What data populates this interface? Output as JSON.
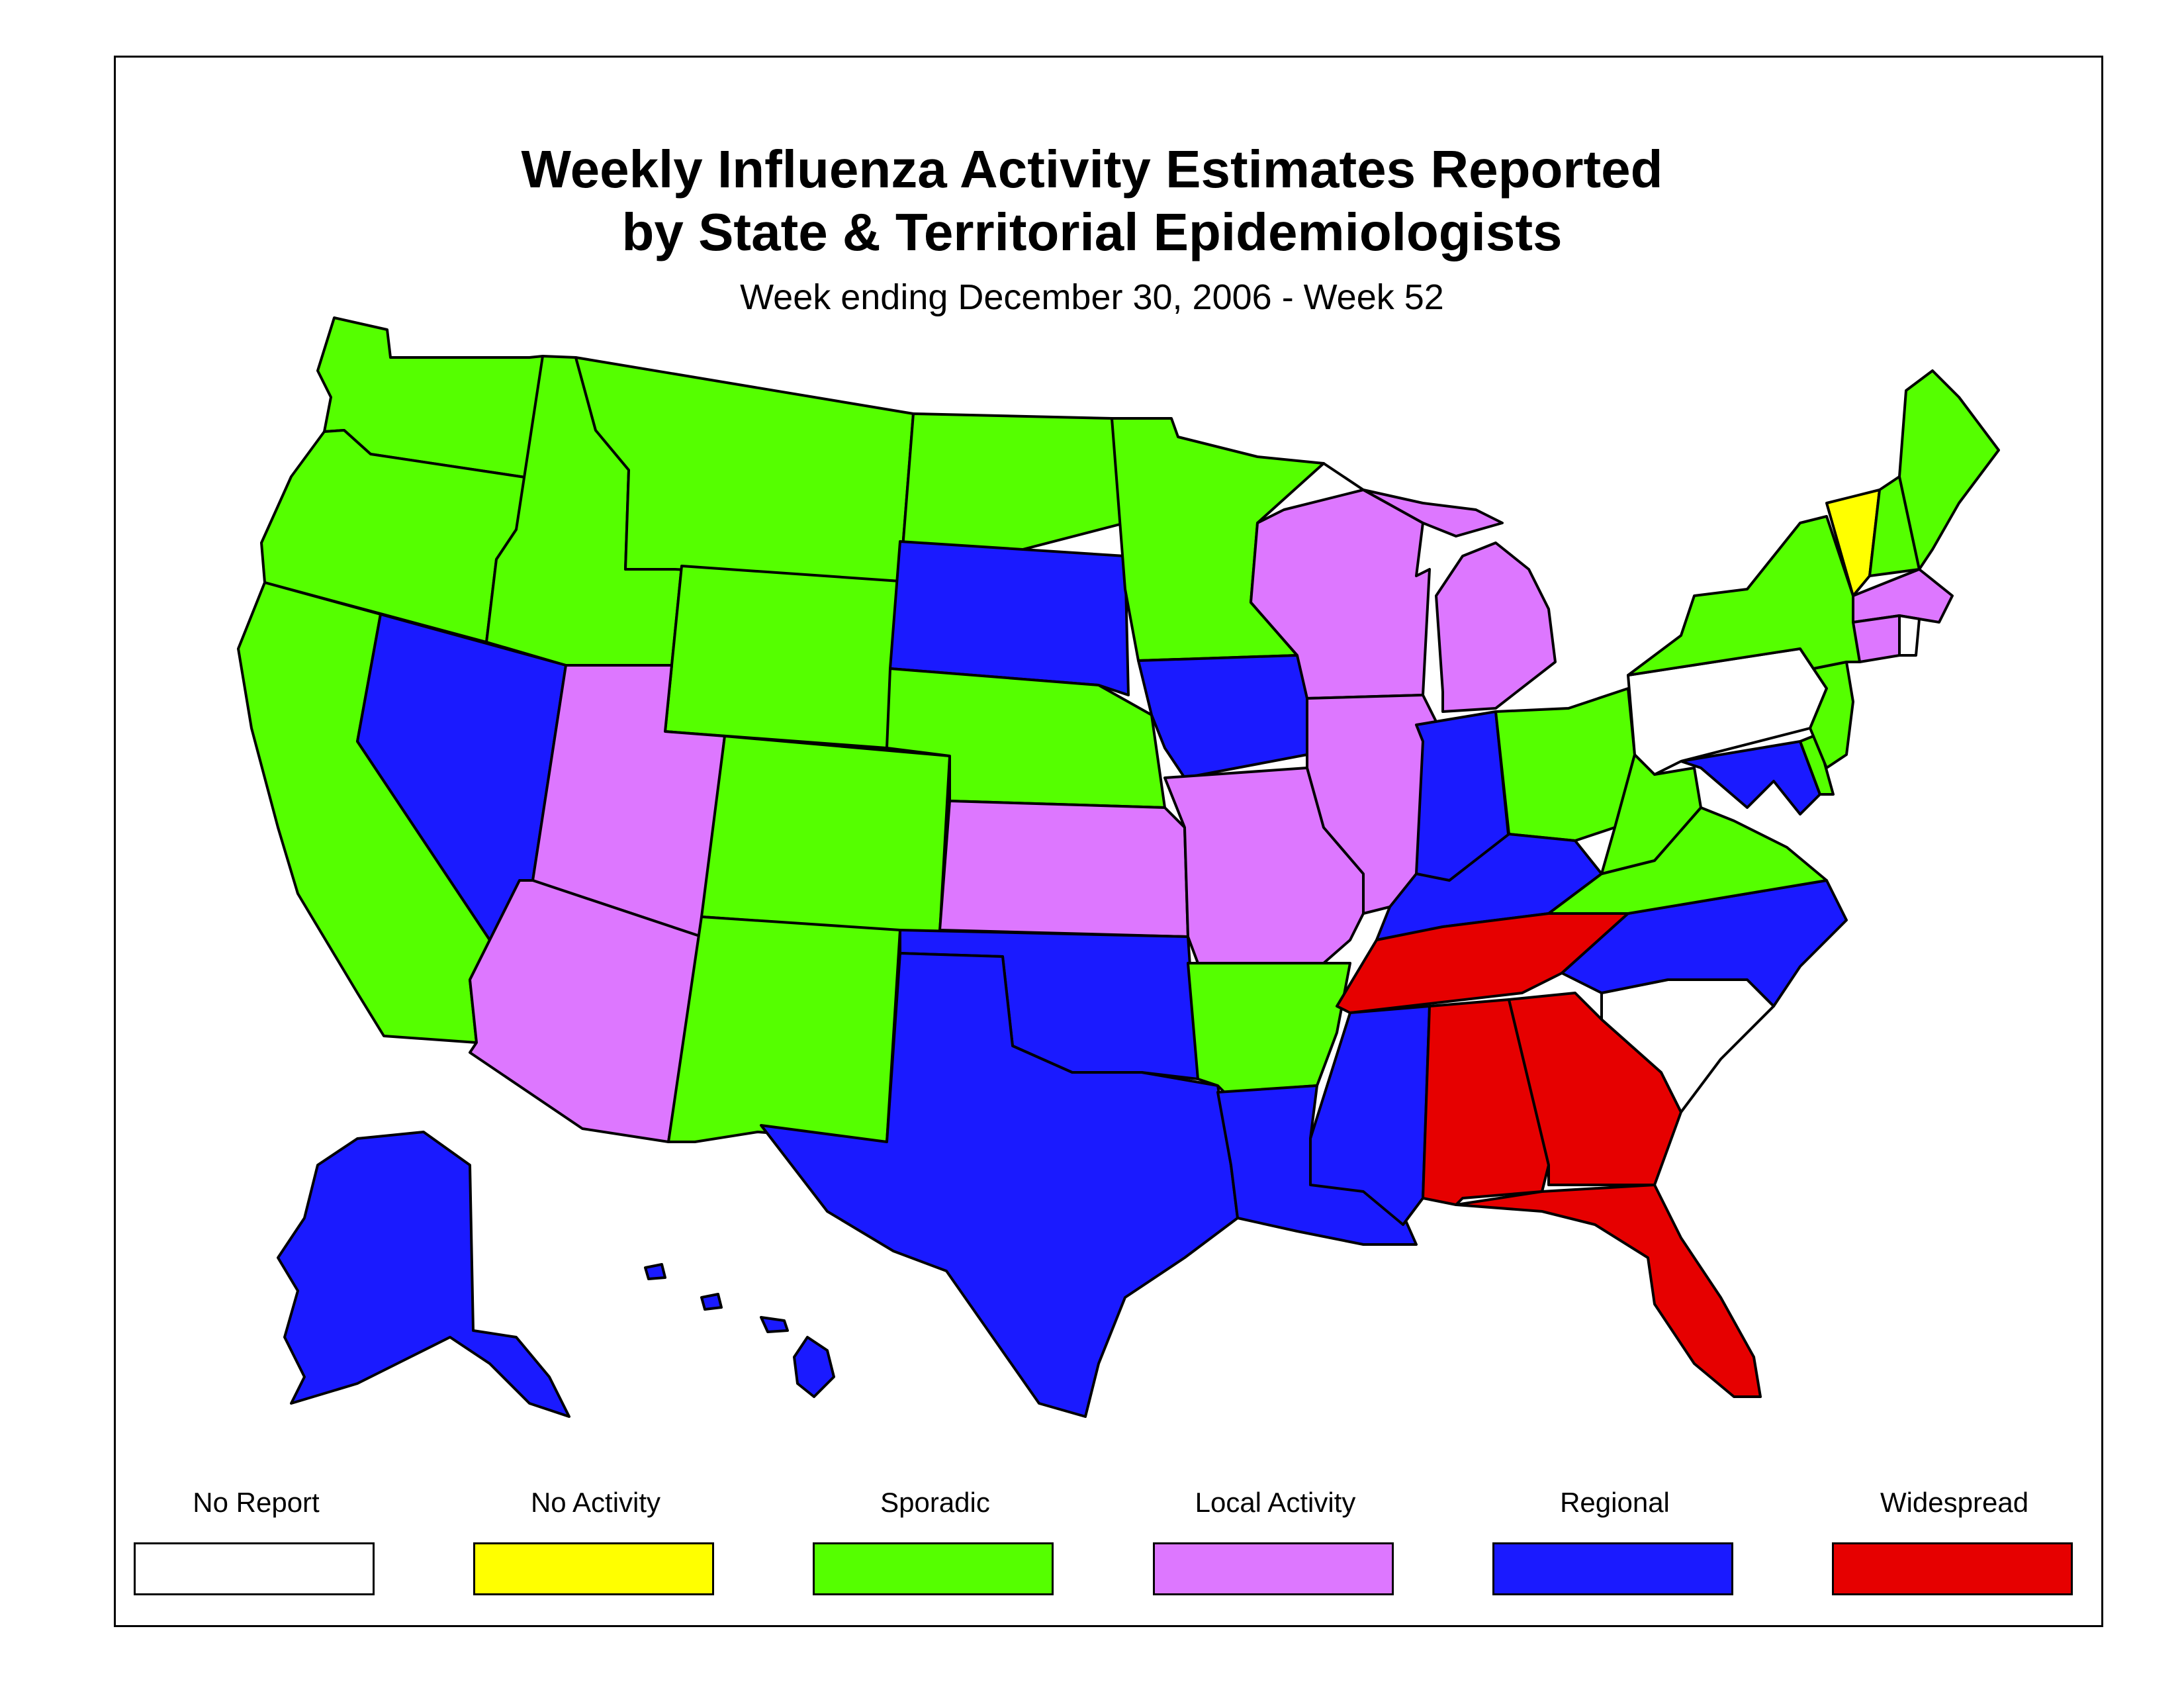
{
  "title_line1": "Weekly Influenza Activity Estimates Reported",
  "title_line2": "by State & Territorial Epidemiologists",
  "subtitle": "Week ending December 30, 2006 - Week 52",
  "levels": {
    "no_report": {
      "label": "No Report",
      "color": "#ffffff"
    },
    "no_activity": {
      "label": "No Activity",
      "color": "#ffff00"
    },
    "sporadic": {
      "label": "Sporadic",
      "color": "#55ff00"
    },
    "local": {
      "label": "Local Activity",
      "color": "#dd77ff"
    },
    "regional": {
      "label": "Regional",
      "color": "#1a1aff"
    },
    "widespread": {
      "label": "Widespread",
      "color": "#e60000"
    }
  },
  "legend_order": [
    "no_report",
    "no_activity",
    "sporadic",
    "local",
    "regional",
    "widespread"
  ],
  "states": {
    "WA": "sporadic",
    "OR": "sporadic",
    "CA": "sporadic",
    "ID": "sporadic",
    "NV": "regional",
    "MT": "sporadic",
    "WY": "sporadic",
    "UT": "local",
    "AZ": "local",
    "CO": "sporadic",
    "NM": "sporadic",
    "ND": "sporadic",
    "SD": "regional",
    "NE": "sporadic",
    "KS": "local",
    "OK": "regional",
    "TX": "regional",
    "MN": "sporadic",
    "IA": "regional",
    "MO": "local",
    "AR": "sporadic",
    "LA": "regional",
    "WI": "local",
    "IL": "local",
    "MI": "local",
    "IN": "regional",
    "OH": "sporadic",
    "KY": "regional",
    "TN": "widespread",
    "MS": "regional",
    "AL": "widespread",
    "GA": "widespread",
    "FL": "widespread",
    "SC": "no_report",
    "NC": "regional",
    "VA": "sporadic",
    "WV": "sporadic",
    "MD": "regional",
    "DE": "sporadic",
    "PA": "no_report",
    "NJ": "sporadic",
    "NY": "sporadic",
    "CT": "local",
    "RI": "no_report",
    "MA": "local",
    "VT": "no_activity",
    "NH": "sporadic",
    "ME": "sporadic",
    "AK": "regional",
    "HI": "regional"
  }
}
